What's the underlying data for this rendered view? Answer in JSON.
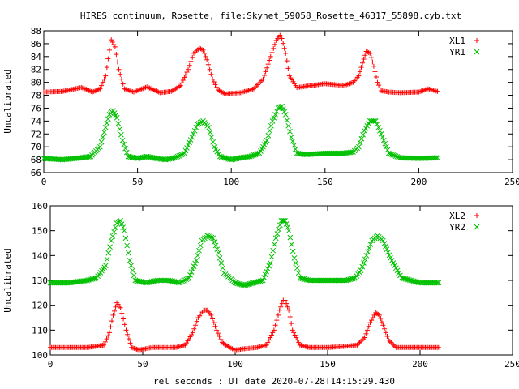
{
  "title": "HIRES continuum, Rosette, file:Skynet_59058_Rosette_46317_55898.cyb.txt",
  "xlabel": "rel seconds : UT date 2020-07-28T14:15:29.430",
  "colors": {
    "red": "#ff0000",
    "green": "#00c000",
    "axis": "#000000"
  },
  "chart_data": [
    {
      "type": "scatter",
      "ylabel": "Uncalibrated",
      "xlim": [
        0,
        250
      ],
      "ylim": [
        66,
        88
      ],
      "xticks": [
        0,
        50,
        100,
        150,
        200,
        250
      ],
      "yticks": [
        66,
        68,
        70,
        72,
        74,
        76,
        78,
        80,
        82,
        84,
        86,
        88
      ],
      "legend_position": "top-right",
      "grid": false,
      "series": [
        {
          "name": "XL1",
          "color": "#ff0000",
          "marker": "plus",
          "x": [
            0,
            10,
            20,
            22,
            26,
            30,
            33,
            35,
            36,
            38,
            40,
            43,
            48,
            55,
            62,
            68,
            73,
            77,
            80,
            83,
            85,
            87,
            90,
            93,
            97,
            100,
            105,
            112,
            117,
            121,
            124,
            126,
            127,
            129,
            131,
            135,
            140,
            150,
            160,
            165,
            168,
            170,
            172,
            174,
            176,
            178,
            180,
            184,
            190,
            200,
            205,
            210
          ],
          "y": [
            78.5,
            78.6,
            79.2,
            79.0,
            78.5,
            79.0,
            81.0,
            85.0,
            86.6,
            85.5,
            82.0,
            79.0,
            78.5,
            79.3,
            78.4,
            78.6,
            79.5,
            82.0,
            84.5,
            85.3,
            85.0,
            83.5,
            80.5,
            78.8,
            78.2,
            78.3,
            78.4,
            79.0,
            80.5,
            84.0,
            86.5,
            87.3,
            86.8,
            84.5,
            81.0,
            79.2,
            79.4,
            79.8,
            79.5,
            80.0,
            81.0,
            83.0,
            84.8,
            84.5,
            82.5,
            80.0,
            78.7,
            78.5,
            78.4,
            78.5,
            79.0,
            78.6
          ]
        },
        {
          "name": "YR1",
          "color": "#00c000",
          "marker": "cross",
          "x": [
            0,
            10,
            20,
            25,
            30,
            33,
            35,
            37,
            39,
            42,
            45,
            50,
            55,
            60,
            65,
            70,
            75,
            79,
            82,
            85,
            88,
            91,
            94,
            100,
            105,
            110,
            115,
            119,
            122,
            125,
            127,
            129,
            132,
            135,
            140,
            150,
            160,
            165,
            168,
            171,
            174,
            177,
            180,
            184,
            190,
            200,
            210
          ],
          "y": [
            68.2,
            68.0,
            68.3,
            68.5,
            70.0,
            73.0,
            75.0,
            75.6,
            74.5,
            71.0,
            68.5,
            68.2,
            68.5,
            68.2,
            68.0,
            68.3,
            69.0,
            71.5,
            73.5,
            74.0,
            73.0,
            70.0,
            68.5,
            68.0,
            68.3,
            68.5,
            69.0,
            71.0,
            74.0,
            76.0,
            76.3,
            75.0,
            71.5,
            69.0,
            68.8,
            69.0,
            69.0,
            69.2,
            70.0,
            72.5,
            74.0,
            74.0,
            72.0,
            69.0,
            68.3,
            68.2,
            68.3
          ]
        }
      ]
    },
    {
      "type": "scatter",
      "ylabel": "Uncalibrated",
      "xlim": [
        0,
        250
      ],
      "ylim": [
        100,
        160
      ],
      "xticks": [
        0,
        50,
        100,
        150,
        200,
        250
      ],
      "yticks": [
        100,
        110,
        120,
        130,
        140,
        150,
        160
      ],
      "legend_position": "top-right",
      "grid": false,
      "series": [
        {
          "name": "XL2",
          "color": "#ff0000",
          "marker": "plus",
          "x": [
            0,
            10,
            20,
            25,
            29,
            32,
            34,
            36,
            38,
            41,
            44,
            48,
            55,
            62,
            68,
            73,
            77,
            80,
            83,
            85,
            87,
            90,
            93,
            97,
            100,
            105,
            112,
            117,
            121,
            124,
            126,
            127,
            129,
            131,
            135,
            140,
            150,
            160,
            166,
            170,
            173,
            176,
            178,
            180,
            183,
            187,
            195,
            205,
            210
          ],
          "y": [
            103,
            103,
            103,
            103.5,
            104,
            109,
            116,
            121,
            119,
            110,
            103,
            102,
            103,
            103,
            103,
            104,
            109,
            115,
            118,
            118,
            116,
            110,
            105,
            103,
            102,
            102.5,
            103,
            104,
            110,
            118,
            122,
            122,
            118,
            110,
            104,
            103,
            103,
            103.5,
            104,
            107,
            113,
            117,
            116,
            112,
            106,
            103,
            103,
            103,
            103
          ]
        },
        {
          "name": "YR2",
          "color": "#00c000",
          "marker": "cross",
          "x": [
            0,
            10,
            20,
            25,
            30,
            33,
            36,
            38,
            40,
            43,
            46,
            52,
            58,
            64,
            70,
            75,
            79,
            82,
            85,
            88,
            91,
            94,
            100,
            105,
            110,
            115,
            119,
            122,
            125,
            127,
            129,
            132,
            135,
            140,
            150,
            160,
            165,
            168,
            171,
            174,
            177,
            180,
            184,
            190,
            200,
            210
          ],
          "y": [
            129,
            129,
            130,
            131,
            136,
            146,
            153,
            154,
            150,
            138,
            130,
            129,
            130,
            130,
            129,
            131,
            138,
            146,
            148,
            147,
            141,
            133,
            129,
            128,
            129,
            130,
            137,
            147,
            154,
            154,
            150,
            139,
            131,
            130,
            130,
            130,
            131,
            134,
            140,
            146,
            148,
            146,
            139,
            131,
            129,
            129
          ]
        }
      ]
    }
  ]
}
